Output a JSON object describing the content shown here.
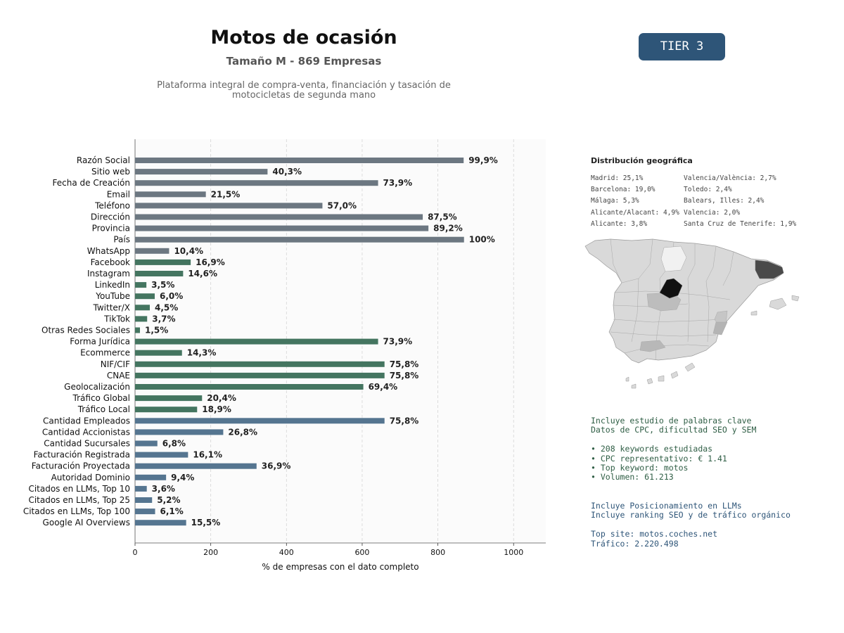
{
  "header": {
    "title": "Motos de ocasión",
    "subtitle": "Tamaño M - 869 Empresas",
    "description_line1": "Plataforma integral de compra-venta, financiación y tasación de",
    "description_line2": "motocicletas de segunda mano",
    "tier": "TIER 3"
  },
  "chart_data": {
    "type": "bar",
    "orientation": "horizontal",
    "xlabel": "% de empresas con el dato completo",
    "xlim": [
      0,
      1085
    ],
    "xticks": [
      "0",
      "200",
      "400",
      "600",
      "800",
      "1000"
    ],
    "grid": "vertical dashed",
    "colors": {
      "identity": "#6c7781",
      "social": "#447560",
      "business": "#557590"
    },
    "categories": [
      "Razón Social",
      "Sitio web",
      "Fecha de Creación",
      "Email",
      "Teléfono",
      "Dirección",
      "Provincia",
      "País",
      "WhatsApp",
      "Facebook",
      "Instagram",
      "LinkedIn",
      "YouTube",
      "Twitter/X",
      "TikTok",
      "Otras Redes Sociales",
      "Forma Jurídica",
      "Ecommerce",
      "NIF/CIF",
      "CNAE",
      "Geolocalización",
      "Tráfico Global",
      "Tráfico Local",
      "Cantidad Empleados",
      "Cantidad Accionistas",
      "Cantidad Sucursales",
      "Facturación Registrada",
      "Facturación Proyectada",
      "Autoridad Dominio",
      "Citados en LLMs, Top 10",
      "Citados en LLMs, Top 25",
      "Citados en LLMs, Top 100",
      "Google AI Overviews"
    ],
    "values": [
      868,
      350,
      642,
      187,
      495,
      760,
      775,
      869,
      90,
      147,
      127,
      30,
      52,
      39,
      32,
      13,
      642,
      124,
      659,
      659,
      603,
      177,
      164,
      659,
      233,
      59,
      140,
      321,
      82,
      31,
      45,
      53,
      135
    ],
    "labels": [
      "99,9%",
      "40,3%",
      "73,9%",
      "21,5%",
      "57,0%",
      "87,5%",
      "89,2%",
      "100%",
      "10,4%",
      "16,9%",
      "14,6%",
      "3,5%",
      "6,0%",
      "4,5%",
      "3,7%",
      "1,5%",
      "73,9%",
      "14,3%",
      "75,8%",
      "75,8%",
      "69,4%",
      "20,4%",
      "18,9%",
      "75,8%",
      "26,8%",
      "6,8%",
      "16,1%",
      "36,9%",
      "9,4%",
      "3,6%",
      "5,2%",
      "6,1%",
      "15,5%"
    ],
    "groups": [
      "identity",
      "identity",
      "identity",
      "identity",
      "identity",
      "identity",
      "identity",
      "identity",
      "identity",
      "social",
      "social",
      "social",
      "social",
      "social",
      "social",
      "social",
      "social",
      "social",
      "social",
      "social",
      "social",
      "social",
      "social",
      "business",
      "business",
      "business",
      "business",
      "business",
      "business",
      "business",
      "business",
      "business",
      "business"
    ]
  },
  "geo": {
    "title": "Distribución geográfica",
    "col1": [
      "Madrid: 25,1%",
      "Barcelona: 19,0%",
      "Málaga: 5,3%",
      "Alicante/Alacant: 4,9%",
      "Alicante: 3,8%"
    ],
    "col2": [
      "Valencia/València: 2,7%",
      "Toledo: 2,4%",
      "Balears, Illes: 2,4%",
      "Valencia: 2,0%",
      "Santa Cruz de Tenerife: 1,9%"
    ]
  },
  "keywords": {
    "line1": "Incluye estudio de palabras clave",
    "line2": "Datos de CPC, dificultad SEO y SEM",
    "b1": "• 208 keywords estudiadas",
    "b2": "• CPC representativo: € 1.41",
    "b3": "• Top keyword: motos",
    "b4": "• Volumen: 61.213"
  },
  "llm": {
    "line1": "Incluye Posicionamiento en LLMs",
    "line2": "Incluye ranking SEO y de tráfico orgánico",
    "site": "Top site: motos.coches.net",
    "traffic": "Tráfico: 2.220.498"
  }
}
